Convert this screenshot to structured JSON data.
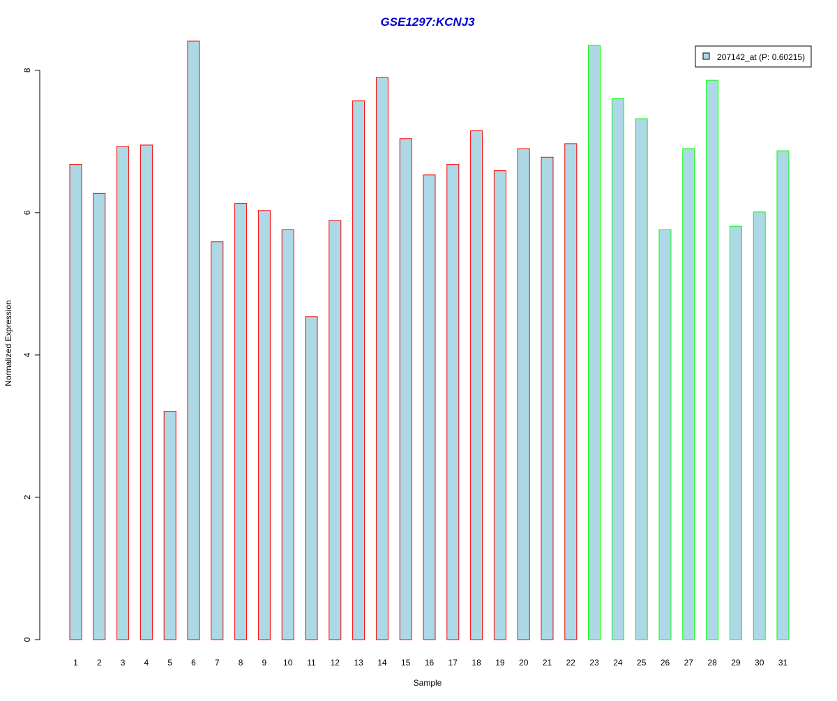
{
  "chart_data": {
    "type": "bar",
    "title": "GSE1297:KCNJ3",
    "xlabel": "Sample",
    "ylabel": "Normalized Expression",
    "categories": [
      "1",
      "2",
      "3",
      "4",
      "5",
      "6",
      "7",
      "8",
      "9",
      "10",
      "11",
      "12",
      "13",
      "14",
      "15",
      "16",
      "17",
      "18",
      "19",
      "20",
      "21",
      "22",
      "23",
      "24",
      "25",
      "26",
      "27",
      "28",
      "29",
      "30",
      "31"
    ],
    "series": [
      {
        "name": "207142_at (P: 0.60215)",
        "values": [
          6.68,
          6.27,
          6.93,
          6.95,
          3.21,
          8.41,
          5.59,
          6.13,
          6.03,
          5.76,
          4.54,
          5.89,
          7.57,
          7.9,
          7.04,
          6.53,
          6.68,
          7.15,
          6.59,
          6.9,
          6.78,
          6.97,
          8.35,
          7.6,
          7.32,
          5.76,
          6.9,
          7.86,
          5.81,
          6.01,
          6.87
        ]
      }
    ],
    "group_of_sample": [
      "red",
      "red",
      "red",
      "red",
      "red",
      "red",
      "red",
      "red",
      "red",
      "red",
      "red",
      "red",
      "red",
      "red",
      "red",
      "red",
      "red",
      "red",
      "red",
      "red",
      "red",
      "red",
      "green",
      "green",
      "green",
      "green",
      "green",
      "green",
      "green",
      "green",
      "green"
    ],
    "yticks": [
      0,
      2,
      4,
      6,
      8
    ],
    "ylim": [
      0,
      8.41
    ],
    "grid": false,
    "legend_position": "top-right",
    "colors": {
      "bar_fill": "#add8e6",
      "group_red": "#ff0000",
      "group_green": "#00ff00",
      "title": "#0000cd",
      "axis": "#000000"
    }
  }
}
